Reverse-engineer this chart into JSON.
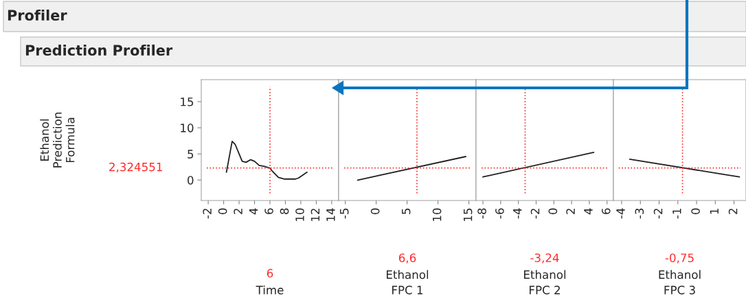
{
  "chart_data": [
    {
      "type": "line",
      "annotations": [
        "Profiler"
      ],
      "subtitle": "Prediction Profiler",
      "ylabel": "Ethanol\nPrediction\nFormula",
      "xlabel": "Time",
      "x": [
        0.36,
        1.1,
        1.5,
        2.4,
        2.9,
        3.5,
        4.0,
        4.6,
        5.3,
        6.0,
        6.25,
        7.1,
        7.9,
        9.3,
        9.7,
        10.8
      ],
      "series": [
        {
          "color": "#202020",
          "values": [
            1.5,
            7.4,
            6.8,
            3.6,
            3.4,
            3.9,
            3.6,
            2.8,
            2.6,
            2.3,
            1.8,
            0.5,
            0.2,
            0.2,
            0.4,
            1.5
          ]
        }
      ],
      "xlim": [
        -2.9,
        14.9
      ],
      "xticks": [
        -2,
        0,
        2,
        4,
        6,
        8,
        10,
        12,
        14
      ],
      "ylim": [
        -3.9,
        19.2
      ],
      "yticks": [
        0,
        5,
        10,
        15
      ],
      "grid": false,
      "ref_lines": [
        {
          "axis": "x",
          "value": 6,
          "label": "6",
          "color": "#ff2a2a",
          "line_style": "dotted"
        },
        {
          "axis": "y",
          "value": 2.324551,
          "label": "2,324551",
          "color": "#ff2a2a",
          "line_style": "dotted"
        }
      ]
    },
    {
      "type": "line",
      "xlabel": "Ethanol\nFPC 1",
      "x": [
        -3.0,
        14.5
      ],
      "series": [
        {
          "color": "#202020",
          "values": [
            0.0,
            4.5
          ]
        }
      ],
      "xlim": [
        -6.07,
        16.16
      ],
      "xticks": [
        -5,
        0,
        5,
        10,
        15
      ],
      "ylim": [
        -3.9,
        19.2
      ],
      "tick_labels": "x",
      "grid": false,
      "ref_lines": [
        {
          "axis": "x",
          "value": 6.6,
          "label": "6,6",
          "color": "#ff2a2a",
          "line_style": "dotted"
        },
        {
          "axis": "y",
          "value": 2.324551,
          "color": "#ff2a2a",
          "line_style": "dotted"
        }
      ]
    },
    {
      "type": "line",
      "xlabel": "Ethanol\nFPC 2",
      "x": [
        -8,
        4.5
      ],
      "series": [
        {
          "color": "#202020",
          "values": [
            0.6,
            5.3
          ]
        }
      ],
      "xlim": [
        -8.78,
        6.72
      ],
      "xticks": [
        -8,
        -6,
        -4,
        -2,
        0,
        2,
        4,
        6
      ],
      "ylim": [
        -3.9,
        19.2
      ],
      "tick_labels": "x",
      "grid": false,
      "ref_lines": [
        {
          "axis": "x",
          "value": -3.24,
          "label": "-3,24",
          "color": "#ff2a2a",
          "line_style": "dotted"
        },
        {
          "axis": "y",
          "value": 2.324551,
          "color": "#ff2a2a",
          "line_style": "dotted"
        }
      ]
    },
    {
      "type": "line",
      "xlabel": "Ethanol\nFPC 3",
      "x": [
        -3.57,
        2.29
      ],
      "series": [
        {
          "color": "#202020",
          "values": [
            4.0,
            0.6
          ]
        }
      ],
      "xlim": [
        -4.44,
        2.64
      ],
      "xticks": [
        -4,
        -3,
        -2,
        -1,
        0,
        1,
        2
      ],
      "ylim": [
        -3.9,
        19.2
      ],
      "tick_labels": "x",
      "grid": false,
      "ref_lines": [
        {
          "axis": "x",
          "value": -0.75,
          "label": "-0,75",
          "color": "#ff2a2a",
          "line_style": "dotted"
        },
        {
          "axis": "y",
          "value": 2.324551,
          "color": "#ff2a2a",
          "line_style": "dotted"
        }
      ]
    }
  ]
}
